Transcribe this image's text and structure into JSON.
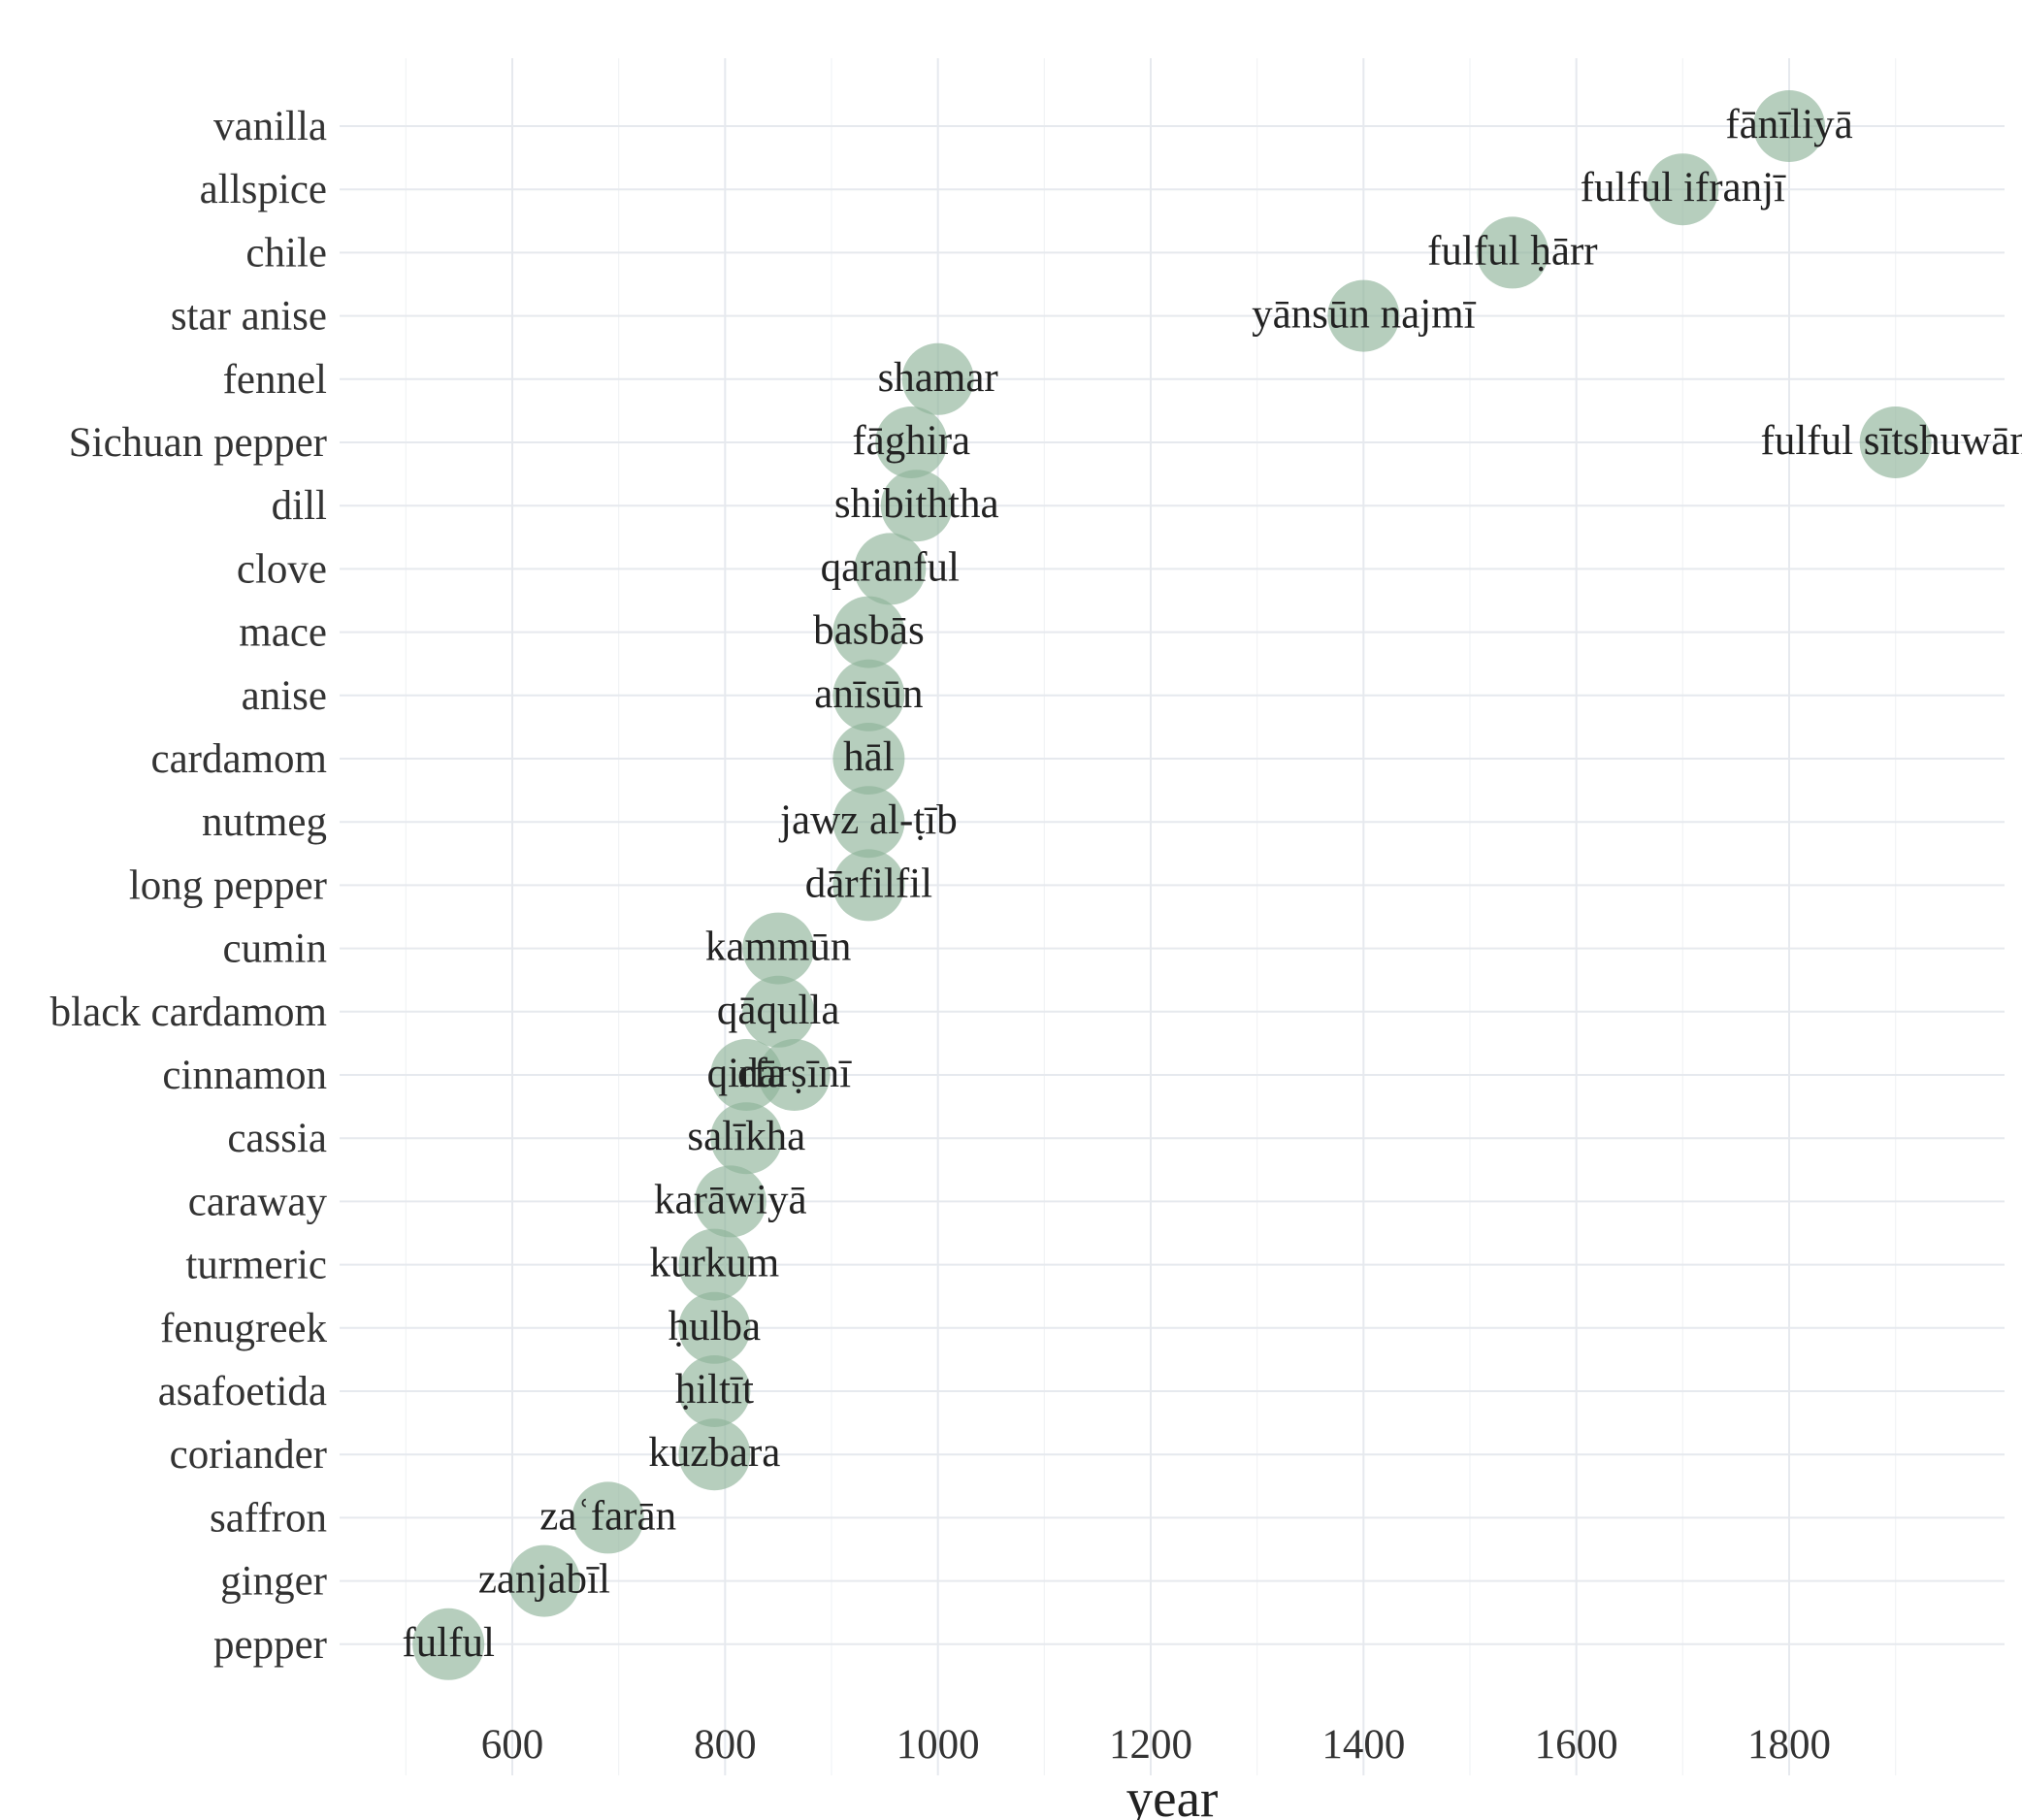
{
  "chart_data": {
    "type": "scatter",
    "title": "",
    "xlabel": "year",
    "ylabel": "",
    "xlim": [
      480,
      1960
    ],
    "x_ticks": [
      600,
      800,
      1000,
      1200,
      1400,
      1600,
      1800
    ],
    "grid": true,
    "legend": "none",
    "point_color": "#8fb39a",
    "categories": [
      "vanilla",
      "allspice",
      "chile",
      "star anise",
      "fennel",
      "Sichuan pepper",
      "dill",
      "clove",
      "mace",
      "anise",
      "cardamom",
      "nutmeg",
      "long pepper",
      "cumin",
      "black cardamom",
      "cinnamon",
      "cassia",
      "caraway",
      "turmeric",
      "fenugreek",
      "asafoetida",
      "coriander",
      "saffron",
      "ginger",
      "pepper"
    ],
    "points": [
      {
        "spice": "vanilla",
        "year": 1800,
        "label": "fānīliyā"
      },
      {
        "spice": "allspice",
        "year": 1700,
        "label": "fulful ifranjī"
      },
      {
        "spice": "chile",
        "year": 1540,
        "label": "fulful ḥārr"
      },
      {
        "spice": "star anise",
        "year": 1400,
        "label": "yānsūn najmī"
      },
      {
        "spice": "fennel",
        "year": 1000,
        "label": "shamar"
      },
      {
        "spice": "Sichuan pepper",
        "year": 975,
        "label": "fāghira"
      },
      {
        "spice": "Sichuan pepper",
        "year": 1900,
        "label": "fulful sītshuwān"
      },
      {
        "spice": "dill",
        "year": 980,
        "label": "shibiththa"
      },
      {
        "spice": "clove",
        "year": 955,
        "label": "qaranful"
      },
      {
        "spice": "mace",
        "year": 935,
        "label": "basbās"
      },
      {
        "spice": "anise",
        "year": 935,
        "label": "anīsūn"
      },
      {
        "spice": "cardamom",
        "year": 935,
        "label": "hāl"
      },
      {
        "spice": "nutmeg",
        "year": 935,
        "label": "jawz al-ṭīb"
      },
      {
        "spice": "long pepper",
        "year": 935,
        "label": "dārfilfil"
      },
      {
        "spice": "cumin",
        "year": 850,
        "label": "kammūn"
      },
      {
        "spice": "black cardamom",
        "year": 850,
        "label": "qāqulla"
      },
      {
        "spice": "cinnamon",
        "year": 820,
        "label": "qirfa"
      },
      {
        "spice": "cinnamon",
        "year": 865,
        "label": "dārṣīnī"
      },
      {
        "spice": "cassia",
        "year": 820,
        "label": "salīkha"
      },
      {
        "spice": "caraway",
        "year": 805,
        "label": "karāwiyā"
      },
      {
        "spice": "turmeric",
        "year": 790,
        "label": "kurkum"
      },
      {
        "spice": "fenugreek",
        "year": 790,
        "label": "ḥulba"
      },
      {
        "spice": "asafoetida",
        "year": 790,
        "label": "ḥiltīt"
      },
      {
        "spice": "coriander",
        "year": 790,
        "label": "kuzbara"
      },
      {
        "spice": "saffron",
        "year": 690,
        "label": "zaʿfarān"
      },
      {
        "spice": "ginger",
        "year": 630,
        "label": "zanjabīl"
      },
      {
        "spice": "pepper",
        "year": 540,
        "label": "fulful"
      }
    ]
  }
}
